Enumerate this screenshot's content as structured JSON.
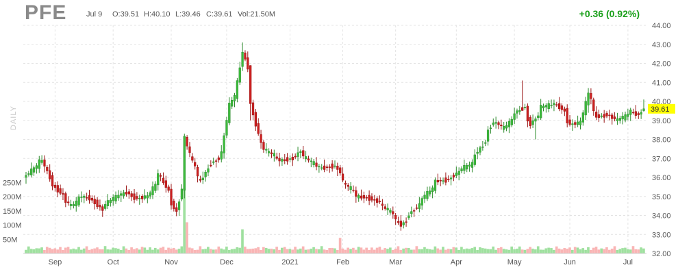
{
  "header": {
    "ticker": "PFE",
    "date": "Jul 9",
    "open": "O:39.51",
    "high": "H:40.10",
    "low": "L:39.46",
    "close": "C:39.61",
    "volume": "Vol:21.50M",
    "change": "+0.36 (0.92%)",
    "periodicity": "DAILY"
  },
  "colors": {
    "up": "#3cbc3c",
    "down": "#cc1f1f",
    "vol_up": "#9fe09f",
    "vol_down": "#f9b5b5",
    "grid": "#e3e3e3",
    "last_price_bg": "#ffff00",
    "change": "#1aa01a"
  },
  "chart_data": {
    "type": "candlestick",
    "title": "PFE",
    "price_axis": {
      "ylim": [
        32,
        44
      ],
      "ticks": [
        "32.00",
        "33.00",
        "34.00",
        "35.00",
        "36.00",
        "37.00",
        "38.00",
        "39.00",
        "40.00",
        "41.00",
        "42.00",
        "43.00",
        "44.00"
      ]
    },
    "volume_axis": {
      "labels": [
        "50M",
        "100M",
        "150M",
        "200M",
        "250M"
      ]
    },
    "x_labels": [
      "Sep",
      "Oct",
      "Nov",
      "Dec",
      "2021",
      "Feb",
      "Mar",
      "Apr",
      "May",
      "Jun",
      "Jul"
    ],
    "last_price": "39.61",
    "grid": true,
    "anchors": [
      [
        "2020-08-17",
        36.1
      ],
      [
        "2020-08-21",
        36.6
      ],
      [
        "2020-08-25",
        36.9
      ],
      [
        "2020-08-28",
        36.0
      ],
      [
        "2020-09-03",
        35.2
      ],
      [
        "2020-09-09",
        34.5
      ],
      [
        "2020-09-15",
        35.0
      ],
      [
        "2020-09-21",
        34.8
      ],
      [
        "2020-09-25",
        34.3
      ],
      [
        "2020-10-01",
        34.9
      ],
      [
        "2020-10-08",
        35.2
      ],
      [
        "2020-10-14",
        34.9
      ],
      [
        "2020-10-20",
        35.0
      ],
      [
        "2020-10-26",
        36.2
      ],
      [
        "2020-10-30",
        35.3
      ],
      [
        "2020-11-04",
        34.2
      ],
      [
        "2020-11-06",
        35.4
      ],
      [
        "2020-11-09",
        38.1
      ],
      [
        "2020-11-12",
        36.8
      ],
      [
        "2020-11-17",
        35.8
      ],
      [
        "2020-11-20",
        36.5
      ],
      [
        "2020-11-26",
        37.0
      ],
      [
        "2020-11-30",
        38.2
      ],
      [
        "2020-12-02",
        39.8
      ],
      [
        "2020-12-07",
        41.0
      ],
      [
        "2020-12-09",
        42.6
      ],
      [
        "2020-12-11",
        41.8
      ],
      [
        "2020-12-15",
        39.3
      ],
      [
        "2020-12-18",
        37.8
      ],
      [
        "2020-12-23",
        37.3
      ],
      [
        "2020-12-29",
        36.9
      ],
      [
        "2021-01-05",
        37.0
      ],
      [
        "2021-01-08",
        37.4
      ],
      [
        "2021-01-14",
        36.8
      ],
      [
        "2021-01-20",
        36.5
      ],
      [
        "2021-01-27",
        36.6
      ],
      [
        "2021-02-02",
        35.6
      ],
      [
        "2021-02-08",
        35.0
      ],
      [
        "2021-02-15",
        34.9
      ],
      [
        "2021-02-19",
        34.7
      ],
      [
        "2021-02-25",
        34.2
      ],
      [
        "2021-03-03",
        33.5
      ],
      [
        "2021-03-09",
        34.2
      ],
      [
        "2021-03-15",
        34.9
      ],
      [
        "2021-03-22",
        35.8
      ],
      [
        "2021-03-29",
        35.9
      ],
      [
        "2021-04-02",
        36.3
      ],
      [
        "2021-04-09",
        36.7
      ],
      [
        "2021-04-15",
        37.7
      ],
      [
        "2021-04-21",
        38.9
      ],
      [
        "2021-04-27",
        38.6
      ],
      [
        "2021-05-03",
        39.4
      ],
      [
        "2021-05-07",
        39.7
      ],
      [
        "2021-05-11",
        38.8
      ],
      [
        "2021-05-17",
        39.7
      ],
      [
        "2021-05-24",
        39.9
      ],
      [
        "2021-05-28",
        39.5
      ],
      [
        "2021-06-01",
        38.8
      ],
      [
        "2021-06-07",
        38.9
      ],
      [
        "2021-06-10",
        40.4
      ],
      [
        "2021-06-15",
        39.2
      ],
      [
        "2021-06-21",
        39.3
      ],
      [
        "2021-06-25",
        39.0
      ],
      [
        "2021-06-30",
        39.2
      ],
      [
        "2021-07-02",
        39.5
      ],
      [
        "2021-07-07",
        39.3
      ],
      [
        "2021-07-09",
        39.61
      ]
    ],
    "spikes": [
      [
        "2020-11-09",
        38.3,
        34.9
      ],
      [
        "2020-12-09",
        43.1,
        41.6
      ],
      [
        "2020-12-14",
        41.9,
        39.0
      ],
      [
        "2021-05-06",
        41.1,
        39.5
      ],
      [
        "2021-05-13",
        39.2,
        38.0
      ],
      [
        "2021-06-10",
        40.7,
        39.4
      ],
      [
        "2021-07-09",
        40.1,
        39.46
      ]
    ],
    "volume_spikes": [
      [
        "2020-11-09",
        230
      ],
      [
        "2020-11-10",
        110
      ],
      [
        "2020-12-09",
        85
      ],
      [
        "2021-01-29",
        55
      ]
    ]
  }
}
